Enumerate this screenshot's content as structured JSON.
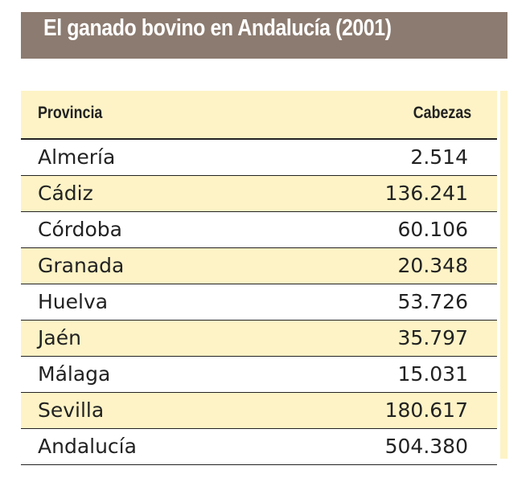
{
  "title": "El ganado bovino en Andalucía (2001)",
  "table": {
    "headers": [
      "Provincia",
      "Cabezas"
    ],
    "rows": [
      [
        "Almería",
        "2.514"
      ],
      [
        "Cádiz",
        "136.241"
      ],
      [
        "Córdoba",
        "60.106"
      ],
      [
        "Granada",
        "20.348"
      ],
      [
        "Huelva",
        "53.726"
      ],
      [
        "Jaén",
        "35.797"
      ],
      [
        "Málaga",
        "15.031"
      ],
      [
        "Sevilla",
        "180.617"
      ],
      [
        "Andalucía",
        "504.380"
      ]
    ]
  },
  "colors": {
    "title_bg": "#8c7b70",
    "highlight": "#fdf3c6"
  }
}
